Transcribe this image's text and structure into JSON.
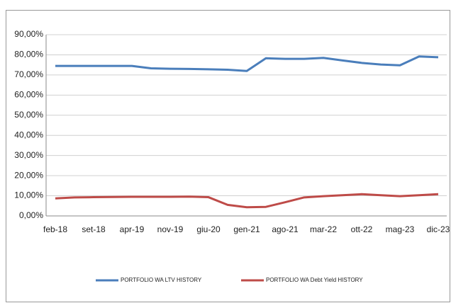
{
  "chart_data": {
    "type": "line",
    "categories": [
      "feb-18",
      null,
      "set-18",
      null,
      "apr-19",
      null,
      "nov-19",
      null,
      "giu-20",
      null,
      "gen-21",
      null,
      "ago-21",
      null,
      "mar-22",
      null,
      "ott-22",
      null,
      "mag-23",
      null,
      "dic-23"
    ],
    "series": [
      {
        "name": "PORTFOLIO WA LTV HISTORY",
        "color": "#4a7ebb",
        "values": [
          74.5,
          74.5,
          74.5,
          74.5,
          74.5,
          73.3,
          73.1,
          73.0,
          72.8,
          72.6,
          72.0,
          78.3,
          78.0,
          78.0,
          78.5,
          77.2,
          76.0,
          75.2,
          74.8,
          79.2,
          78.8
        ]
      },
      {
        "name": "PORTFOLIO WA Debt Yield HISTORY",
        "color": "#be4b48",
        "values": [
          8.7,
          9.2,
          9.3,
          9.4,
          9.5,
          9.5,
          9.5,
          9.6,
          9.3,
          5.5,
          4.3,
          4.5,
          6.8,
          9.2,
          9.8,
          10.3,
          10.8,
          10.3,
          9.8,
          10.3,
          10.8
        ]
      }
    ],
    "ylim": [
      0,
      90
    ],
    "yticks": [
      {
        "value": 0,
        "label": "0,00%"
      },
      {
        "value": 10,
        "label": "10,00%"
      },
      {
        "value": 20,
        "label": "20,00%"
      },
      {
        "value": 30,
        "label": "30,00%"
      },
      {
        "value": 40,
        "label": "40,00%"
      },
      {
        "value": 50,
        "label": "50,00%"
      },
      {
        "value": 60,
        "label": "60,00%"
      },
      {
        "value": 70,
        "label": "70,00%"
      },
      {
        "value": 80,
        "label": "80,00%"
      },
      {
        "value": 90,
        "label": "90,00%"
      }
    ],
    "grid": true,
    "legend": "bottom"
  }
}
